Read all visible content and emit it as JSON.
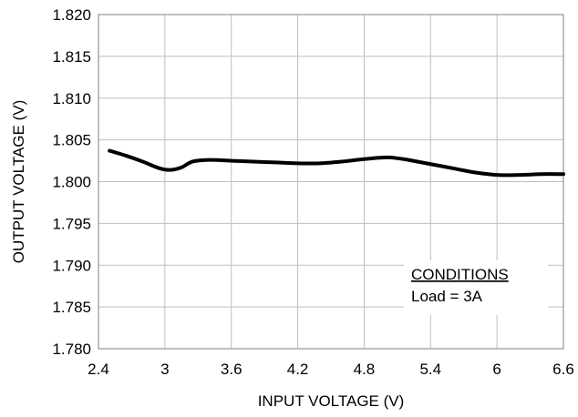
{
  "chart_data": {
    "type": "line",
    "title": "",
    "xlabel": "INPUT VOLTAGE (V)",
    "ylabel": "OUTPUT VOLTAGE (V)",
    "xlim": [
      2.4,
      6.6
    ],
    "ylim": [
      1.78,
      1.82
    ],
    "x_ticks": [
      "2.4",
      "3",
      "3.6",
      "4.2",
      "4.8",
      "5.4",
      "6",
      "6.6"
    ],
    "y_ticks": [
      "1.780",
      "1.785",
      "1.790",
      "1.795",
      "1.800",
      "1.805",
      "1.810",
      "1.815",
      "1.820"
    ],
    "grid": true,
    "legend": "none",
    "line_color": "#000000",
    "grid_color": "#bfbfbf",
    "annotation": {
      "heading": "CONDITIONS",
      "text": "Load = 3A"
    },
    "series": [
      {
        "x": [
          2.5,
          2.65,
          2.8,
          2.95,
          3.05,
          3.15,
          3.25,
          3.4,
          3.6,
          3.8,
          4.0,
          4.2,
          4.4,
          4.6,
          4.8,
          5.0,
          5.1,
          5.2,
          5.4,
          5.6,
          5.8,
          6.0,
          6.2,
          6.4,
          6.6
        ],
        "y": [
          1.8037,
          1.8031,
          1.8024,
          1.8016,
          1.8014,
          1.8017,
          1.8024,
          1.8026,
          1.8025,
          1.8024,
          1.8023,
          1.8022,
          1.8022,
          1.8024,
          1.8027,
          1.8029,
          1.8028,
          1.8026,
          1.8021,
          1.8016,
          1.8011,
          1.8008,
          1.8008,
          1.8009,
          1.8009
        ]
      }
    ]
  }
}
